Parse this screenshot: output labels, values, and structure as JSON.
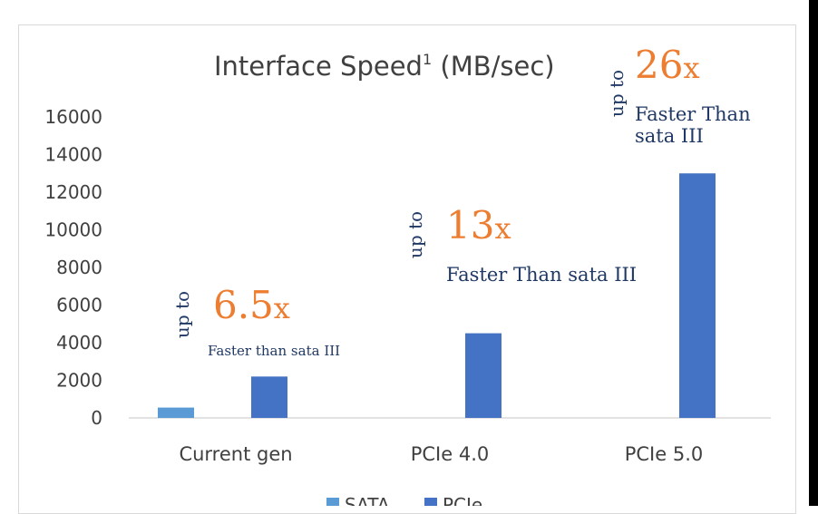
{
  "chart_data": {
    "type": "bar",
    "title": "Interface Speed",
    "title_superscript": "1",
    "title_unit": " (MB/sec)",
    "categories": [
      "Current gen",
      "PCIe 4.0",
      "PCIe 5.0"
    ],
    "series": [
      {
        "name": "SATA",
        "values": [
          550,
          null,
          null
        ],
        "color": "#5b9bd5"
      },
      {
        "name": "PCIe",
        "values": [
          2200,
          4500,
          13000
        ],
        "color": "#4472c4"
      }
    ],
    "ylim": [
      0,
      16000
    ],
    "yticks": [
      "0",
      "2000",
      "4000",
      "6000",
      "8000",
      "10000",
      "12000",
      "14000",
      "16000"
    ],
    "grid": false,
    "legend": "bottom",
    "annotations": [
      {
        "prefix": "up to",
        "multiplier": "6.5x",
        "note": "Faster than sata III"
      },
      {
        "prefix": "up to",
        "multiplier": "13x",
        "note": "Faster Than sata III"
      },
      {
        "prefix": "up to",
        "multiplier": "26x",
        "note": "Faster Than sata III"
      }
    ]
  },
  "colors": {
    "axis": "#d9d9d9",
    "text": "#404040",
    "annotation_blue": "#1f3864",
    "annotation_orange": "#ed7d31"
  }
}
